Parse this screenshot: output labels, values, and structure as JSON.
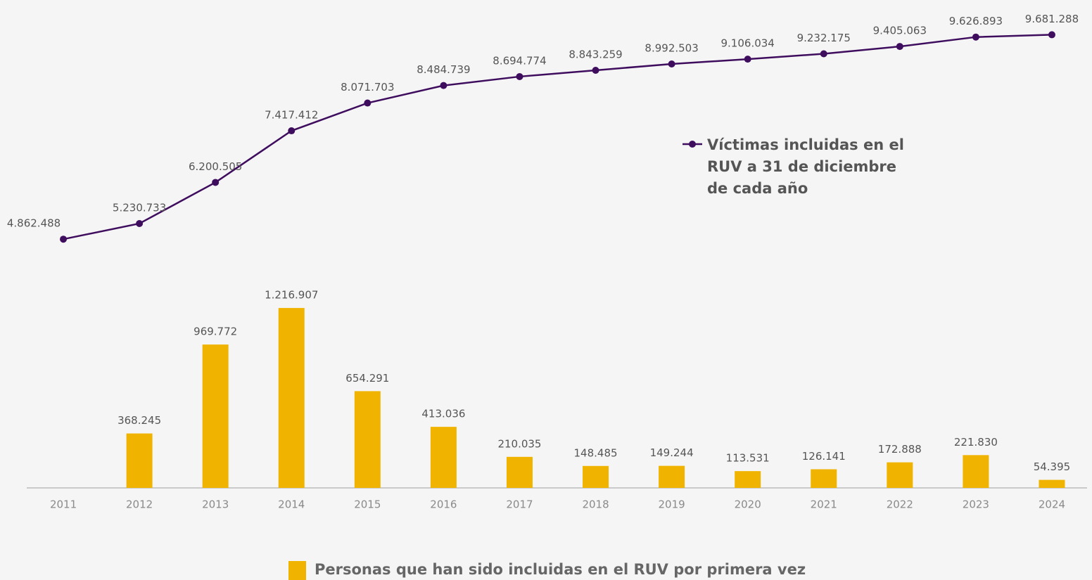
{
  "chart_data": {
    "type": "bar-line",
    "categories": [
      "2011",
      "2012",
      "2013",
      "2014",
      "2015",
      "2016",
      "2017",
      "2018",
      "2019",
      "2020",
      "2021",
      "2022",
      "2023",
      "2024"
    ],
    "ylim": [
      -1000000,
      10500000
    ],
    "y2lim": [
      0,
      3300000
    ],
    "series": [
      {
        "name": "Víctimas incluidas en el RUV a 31 de diciembre de cada año",
        "type": "line",
        "axis": "y",
        "color": "#3f0d5e",
        "values": [
          4862488,
          5230733,
          6200505,
          7417412,
          8071703,
          8484739,
          8694774,
          8843259,
          8992503,
          9106034,
          9232175,
          9405063,
          9626893,
          9681288
        ],
        "value_labels": [
          "4.862.488",
          "5.230.733",
          "6.200.505",
          "7.417.412",
          "8.071.703",
          "8.484.739",
          "8.694.774",
          "8.843.259",
          "8.992.503",
          "9.106.034",
          "9.232.175",
          "9.405.063",
          "9.626.893",
          "9.681.288"
        ]
      },
      {
        "name": "Personas que han sido incluidas en el RUV por primera vez",
        "type": "bar",
        "axis": "y2",
        "color": "#f0b400",
        "values": [
          null,
          368245,
          969772,
          1216907,
          654291,
          413036,
          210035,
          148485,
          149244,
          113531,
          126141,
          172888,
          221830,
          54395
        ],
        "value_labels": [
          null,
          "368.245",
          "969.772",
          "1.216.907",
          "654.291",
          "413.036",
          "210.035",
          "148.485",
          "149.244",
          "113.531",
          "126.141",
          "172.888",
          "221.830",
          "54.395"
        ]
      }
    ]
  }
}
